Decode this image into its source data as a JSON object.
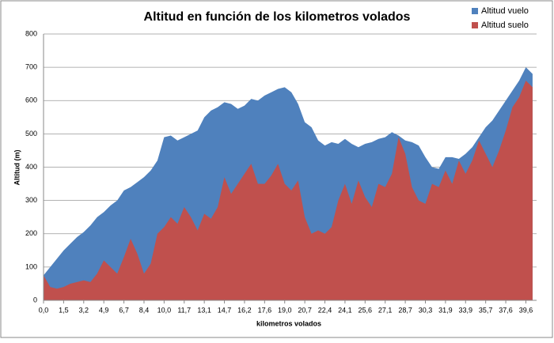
{
  "chart_data": {
    "type": "area",
    "title": "Altitud en función de los kilometros volados",
    "xlabel": "kilometros volados",
    "ylabel": "Altitud (m)",
    "categories": [
      "0,0",
      null,
      null,
      "1,5",
      null,
      null,
      "3,2",
      null,
      null,
      "4,9",
      null,
      null,
      "6,7",
      null,
      null,
      "8,4",
      null,
      null,
      "10,0",
      null,
      null,
      "11,7",
      null,
      null,
      "13,1",
      null,
      null,
      "14,7",
      null,
      null,
      "16,2",
      null,
      null,
      "17,6",
      null,
      null,
      "19,0",
      null,
      null,
      "20,7",
      null,
      null,
      "22,4",
      null,
      null,
      "24,1",
      null,
      null,
      "25,6",
      null,
      null,
      "27,1",
      null,
      null,
      "28,7",
      null,
      null,
      "30,3",
      null,
      null,
      "31,9",
      null,
      null,
      "33,9",
      null,
      null,
      "35,7",
      null,
      null,
      "37,6",
      null,
      null,
      "39,6",
      null
    ],
    "series": [
      {
        "name": "Altitud vuelo",
        "color": "#4f81bd",
        "values": [
          75,
          100,
          125,
          150,
          170,
          190,
          205,
          225,
          250,
          265,
          285,
          300,
          330,
          340,
          355,
          370,
          390,
          420,
          490,
          495,
          480,
          490,
          500,
          510,
          550,
          570,
          580,
          595,
          590,
          575,
          585,
          605,
          600,
          615,
          625,
          635,
          640,
          625,
          590,
          535,
          520,
          480,
          465,
          475,
          470,
          485,
          470,
          460,
          470,
          475,
          485,
          490,
          505,
          495,
          480,
          475,
          465,
          430,
          400,
          395,
          430,
          430,
          425,
          440,
          460,
          490,
          520,
          540,
          570,
          600,
          630,
          660,
          700,
          680
        ]
      },
      {
        "name": "Altitud suelo",
        "color": "#c0504d",
        "values": [
          75,
          40,
          35,
          40,
          50,
          55,
          60,
          55,
          80,
          120,
          100,
          80,
          130,
          185,
          140,
          80,
          110,
          200,
          220,
          250,
          230,
          280,
          250,
          210,
          260,
          245,
          280,
          370,
          320,
          350,
          380,
          410,
          350,
          350,
          375,
          410,
          350,
          330,
          360,
          250,
          200,
          210,
          200,
          220,
          300,
          350,
          290,
          360,
          310,
          280,
          350,
          340,
          380,
          490,
          440,
          340,
          300,
          290,
          350,
          340,
          390,
          350,
          420,
          380,
          420,
          480,
          440,
          400,
          450,
          510,
          580,
          610,
          660,
          640
        ]
      }
    ],
    "ylim": [
      0,
      800
    ],
    "yticks": [
      0,
      100,
      200,
      300,
      400,
      500,
      600,
      700,
      800
    ],
    "grid": true,
    "legend": "top-right"
  }
}
